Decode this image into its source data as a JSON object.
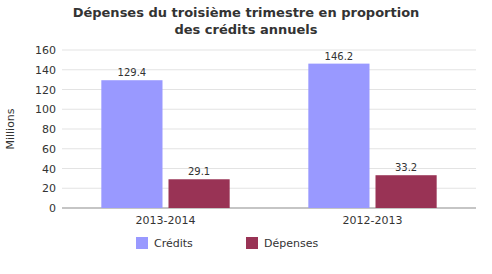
{
  "chart_data": {
    "type": "bar",
    "title": "Dépenses du troisième trimestre en proportion",
    "subtitle": "des crédits annuels",
    "categories": [
      "2013-2014",
      "2012-2013"
    ],
    "series": [
      {
        "name": "Crédits",
        "color": "#9999FF",
        "values": [
          129.4,
          146.2
        ]
      },
      {
        "name": "Dépenses",
        "color": "#993355",
        "values": [
          29.1,
          33.2
        ]
      }
    ],
    "y_label": "Millions",
    "ylim": [
      0,
      160
    ],
    "yticks": [
      0,
      20,
      40,
      60,
      80,
      100,
      120,
      140,
      160
    ],
    "grid": true,
    "data_labels": true,
    "legend": "bottom"
  }
}
